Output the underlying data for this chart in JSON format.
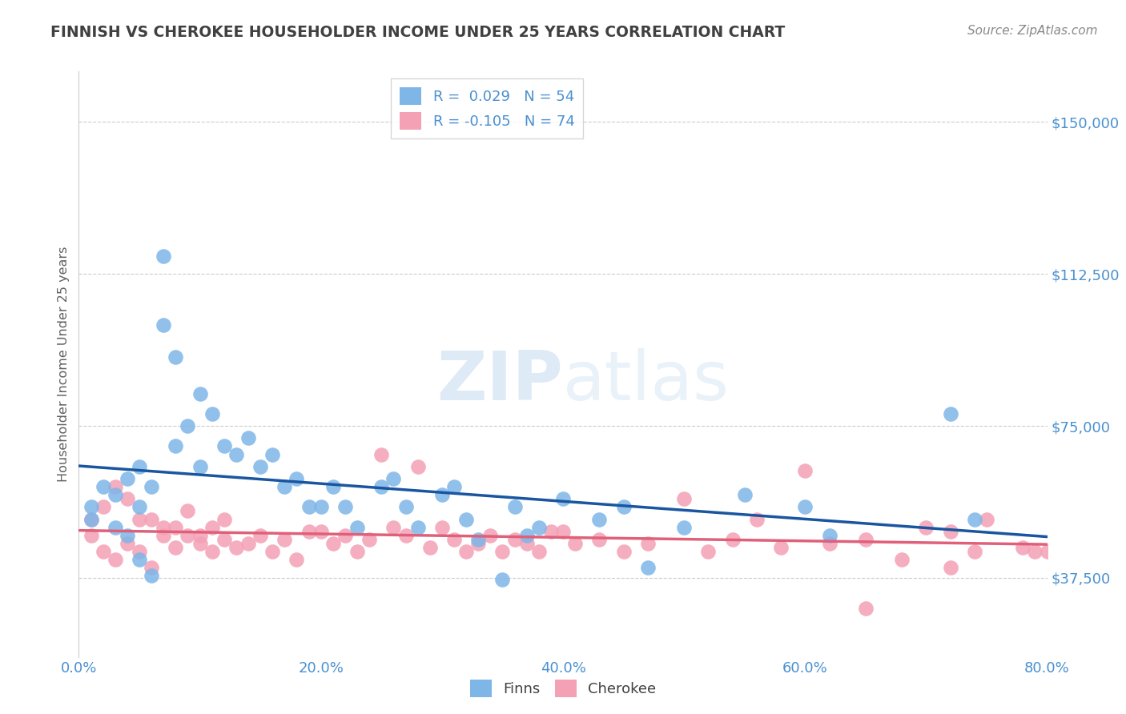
{
  "title": "FINNISH VS CHEROKEE HOUSEHOLDER INCOME UNDER 25 YEARS CORRELATION CHART",
  "source": "Source: ZipAtlas.com",
  "ylabel": "Householder Income Under 25 years",
  "legend_finns": "Finns",
  "legend_cherokee": "Cherokee",
  "R_finns": 0.029,
  "N_finns": 54,
  "R_cherokee": -0.105,
  "N_cherokee": 74,
  "xlim": [
    0.0,
    0.8
  ],
  "ylim": [
    18000,
    162500
  ],
  "yticks": [
    37500,
    75000,
    112500,
    150000
  ],
  "xticks": [
    0.0,
    0.2,
    0.4,
    0.6,
    0.8
  ],
  "color_finns": "#7EB6E8",
  "color_cherokee": "#F4A0B5",
  "color_finns_line": "#1A56A0",
  "color_cherokee_line": "#E0607A",
  "background_color": "#FFFFFF",
  "title_color": "#404040",
  "tick_label_color": "#4A90D0",
  "watermark_zip": "ZIP",
  "watermark_atlas": "atlas",
  "finns_x": [
    0.01,
    0.01,
    0.02,
    0.03,
    0.03,
    0.04,
    0.04,
    0.05,
    0.05,
    0.05,
    0.06,
    0.06,
    0.07,
    0.07,
    0.08,
    0.08,
    0.09,
    0.1,
    0.1,
    0.11,
    0.12,
    0.13,
    0.14,
    0.15,
    0.16,
    0.17,
    0.18,
    0.19,
    0.2,
    0.21,
    0.22,
    0.23,
    0.25,
    0.26,
    0.27,
    0.28,
    0.3,
    0.31,
    0.32,
    0.33,
    0.35,
    0.36,
    0.37,
    0.38,
    0.4,
    0.43,
    0.45,
    0.47,
    0.5,
    0.55,
    0.6,
    0.62,
    0.72,
    0.74
  ],
  "finns_y": [
    55000,
    52000,
    60000,
    58000,
    50000,
    62000,
    48000,
    55000,
    42000,
    65000,
    38000,
    60000,
    117000,
    100000,
    92000,
    70000,
    75000,
    83000,
    65000,
    78000,
    70000,
    68000,
    72000,
    65000,
    68000,
    60000,
    62000,
    55000,
    55000,
    60000,
    55000,
    50000,
    60000,
    62000,
    55000,
    50000,
    58000,
    60000,
    52000,
    47000,
    37000,
    55000,
    48000,
    50000,
    57000,
    52000,
    55000,
    40000,
    50000,
    58000,
    55000,
    48000,
    78000,
    52000
  ],
  "cherokee_x": [
    0.01,
    0.01,
    0.02,
    0.02,
    0.03,
    0.03,
    0.04,
    0.04,
    0.05,
    0.05,
    0.06,
    0.06,
    0.07,
    0.07,
    0.08,
    0.08,
    0.09,
    0.09,
    0.1,
    0.1,
    0.11,
    0.11,
    0.12,
    0.12,
    0.13,
    0.14,
    0.15,
    0.16,
    0.17,
    0.18,
    0.19,
    0.2,
    0.21,
    0.22,
    0.23,
    0.24,
    0.25,
    0.26,
    0.27,
    0.28,
    0.29,
    0.3,
    0.31,
    0.32,
    0.33,
    0.34,
    0.35,
    0.36,
    0.37,
    0.38,
    0.39,
    0.4,
    0.41,
    0.43,
    0.45,
    0.47,
    0.5,
    0.52,
    0.54,
    0.56,
    0.58,
    0.6,
    0.62,
    0.65,
    0.68,
    0.7,
    0.72,
    0.74,
    0.75,
    0.78,
    0.79,
    0.8,
    0.65,
    0.72
  ],
  "cherokee_y": [
    52000,
    48000,
    55000,
    44000,
    60000,
    42000,
    57000,
    46000,
    52000,
    44000,
    40000,
    52000,
    48000,
    50000,
    45000,
    50000,
    48000,
    54000,
    46000,
    48000,
    50000,
    44000,
    52000,
    47000,
    45000,
    46000,
    48000,
    44000,
    47000,
    42000,
    49000,
    49000,
    46000,
    48000,
    44000,
    47000,
    68000,
    50000,
    48000,
    65000,
    45000,
    50000,
    47000,
    44000,
    46000,
    48000,
    44000,
    47000,
    46000,
    44000,
    49000,
    49000,
    46000,
    47000,
    44000,
    46000,
    57000,
    44000,
    47000,
    52000,
    45000,
    64000,
    46000,
    47000,
    42000,
    50000,
    49000,
    44000,
    52000,
    45000,
    44000,
    44000,
    30000,
    40000
  ]
}
